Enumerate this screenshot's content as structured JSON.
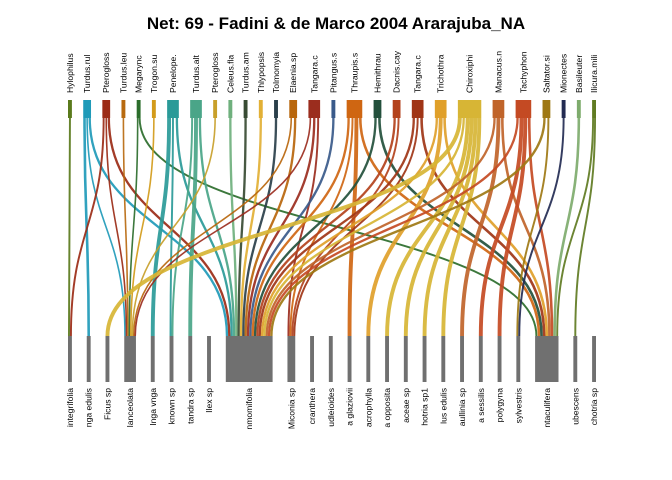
{
  "chart_data": {
    "type": "bipartite",
    "title": "Net: 69 - Fadini & de Marco 2004 Ararajuba_NA",
    "higher_level": {
      "labels": [
        "Hylophilus",
        "Turdus.rul",
        "Pterogloss",
        "Turdus.leu",
        "Megarync",
        "Trogon.su",
        "Penelope.",
        "Turdus.alt",
        "Pterogloss",
        "Celeus.fla",
        "Turdus.am",
        "Thlypopsis",
        "Tolmomyia",
        "Elaenia.sp",
        "Tangara.c",
        "Pitangus.s",
        "Thraupis.s",
        "Hemithrau",
        "Dacnis.cay",
        "Tangara.c",
        "Trichothra",
        "Chiroxiphi",
        "Manacus.n",
        "Tachyphon",
        "Saltator.si",
        "Mionectes",
        "Basileuter",
        "Ilicura.mili"
      ],
      "abundance": [
        1,
        2,
        2,
        1,
        1,
        1,
        3,
        3,
        1,
        1,
        1,
        1,
        1,
        2,
        3,
        1,
        4,
        2,
        2,
        3,
        3,
        6,
        3,
        4,
        2,
        1,
        1,
        1
      ],
      "colors": [
        "#5a7a1c",
        "#1f9ab8",
        "#9b2b16",
        "#b86a10",
        "#2b6d2b",
        "#d39b1a",
        "#2a9a98",
        "#4aa588",
        "#c8a02a",
        "#6fb07d",
        "#384b33",
        "#e2b035",
        "#2a3f4a",
        "#b8660c",
        "#9b2d1e",
        "#3a5a8a",
        "#cf6612",
        "#23503c",
        "#b3421c",
        "#a03516",
        "#e0a02a",
        "#d7b535",
        "#c0642a",
        "#c44a23",
        "#9e7814",
        "#232b52",
        "#7eab6c",
        "#607b22"
      ]
    },
    "lower_level": {
      "labels": [
        "integrifolia",
        "nga edulis",
        "Ficus sp",
        "lanceolata",
        "Inga vnga",
        "known sp",
        "tandra sp",
        "Ilex sp",
        "nmomifolia",
        "Miconia sp",
        "cranthera",
        "udleioides",
        "a glaziovii",
        "acrophylla",
        "a opposita",
        "aceae sp",
        "hotria sp1",
        "lus edulis",
        "aullinia sp",
        "a sessilis",
        "polygyna",
        "sylvestris",
        "ntaculifera",
        "ubescens",
        "chotria sp"
      ],
      "abundance": [
        1,
        1,
        1,
        3,
        1,
        1,
        1,
        1,
        12,
        2,
        1,
        1,
        1,
        1,
        1,
        1,
        1,
        1,
        1,
        1,
        1,
        1,
        6,
        1,
        1
      ]
    },
    "interactions": [
      [
        0,
        0
      ],
      [
        1,
        1
      ],
      [
        1,
        3
      ],
      [
        1,
        8
      ],
      [
        2,
        0
      ],
      [
        2,
        3
      ],
      [
        2,
        8
      ],
      [
        3,
        3
      ],
      [
        4,
        3
      ],
      [
        4,
        22
      ],
      [
        5,
        3
      ],
      [
        6,
        4
      ],
      [
        6,
        5
      ],
      [
        6,
        8
      ],
      [
        7,
        5
      ],
      [
        7,
        6
      ],
      [
        7,
        8
      ],
      [
        8,
        3
      ],
      [
        9,
        8
      ],
      [
        10,
        8
      ],
      [
        11,
        8
      ],
      [
        12,
        8
      ],
      [
        13,
        3
      ],
      [
        13,
        8
      ],
      [
        14,
        3
      ],
      [
        14,
        8
      ],
      [
        14,
        9
      ],
      [
        15,
        8
      ],
      [
        16,
        8
      ],
      [
        16,
        9
      ],
      [
        16,
        12
      ],
      [
        16,
        22
      ],
      [
        17,
        8
      ],
      [
        17,
        22
      ],
      [
        18,
        8
      ],
      [
        18,
        9
      ],
      [
        19,
        8
      ],
      [
        19,
        9
      ],
      [
        19,
        22
      ],
      [
        20,
        8
      ],
      [
        20,
        13
      ],
      [
        20,
        22
      ],
      [
        21,
        2
      ],
      [
        21,
        8
      ],
      [
        21,
        14
      ],
      [
        21,
        15
      ],
      [
        21,
        16
      ],
      [
        21,
        17
      ],
      [
        22,
        8
      ],
      [
        22,
        18
      ],
      [
        22,
        22
      ],
      [
        23,
        8
      ],
      [
        23,
        19
      ],
      [
        23,
        20
      ],
      [
        23,
        22
      ],
      [
        24,
        8
      ],
      [
        24,
        21
      ],
      [
        25,
        21
      ],
      [
        26,
        22
      ],
      [
        27,
        22
      ],
      [
        27,
        23
      ]
    ],
    "lower_bar_color": "#707070"
  }
}
